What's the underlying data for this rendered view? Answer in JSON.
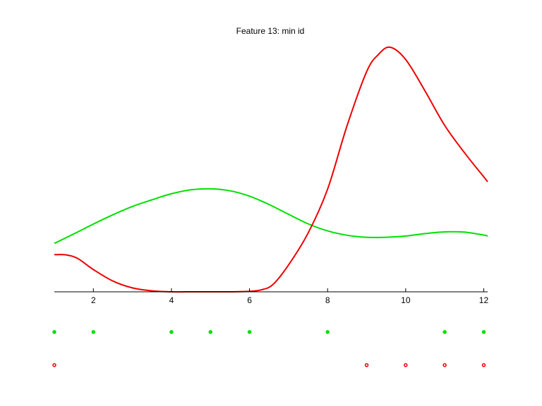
{
  "chart_data": {
    "type": "line",
    "title": "Feature 13: min id",
    "xlabel": "",
    "ylabel": "",
    "xlim": [
      1,
      12.1
    ],
    "ylim": [
      0,
      1.0
    ],
    "xticks": [
      2,
      4,
      6,
      8,
      10,
      12
    ],
    "grid": false,
    "series": [
      {
        "color": "#00e000",
        "x": [
          1,
          1.5,
          2,
          2.5,
          3,
          3.5,
          4,
          4.5,
          5,
          5.5,
          6,
          6.5,
          7,
          7.5,
          8,
          8.5,
          9,
          9.5,
          10,
          10.5,
          11,
          11.5,
          12,
          12.1
        ],
        "y": [
          0.198,
          0.237,
          0.277,
          0.315,
          0.349,
          0.376,
          0.401,
          0.417,
          0.421,
          0.413,
          0.391,
          0.357,
          0.317,
          0.278,
          0.249,
          0.231,
          0.223,
          0.223,
          0.228,
          0.238,
          0.245,
          0.244,
          0.232,
          0.228
        ]
      },
      {
        "color": "#ee0000",
        "x": [
          1,
          1.3,
          1.6,
          2,
          2.5,
          3,
          3.5,
          4,
          4.5,
          5,
          5.5,
          6,
          6.3,
          6.6,
          7,
          7.5,
          8,
          8.5,
          9,
          9.3,
          9.6,
          10,
          10.5,
          11,
          11.5,
          12,
          12.1
        ],
        "y": [
          0.152,
          0.151,
          0.136,
          0.091,
          0.044,
          0.016,
          0.004,
          0.0,
          0.0,
          0.0,
          0.0,
          0.002,
          0.008,
          0.03,
          0.11,
          0.24,
          0.42,
          0.68,
          0.9,
          0.97,
          1.0,
          0.95,
          0.82,
          0.68,
          0.57,
          0.47,
          0.45
        ]
      }
    ],
    "dot_rows": [
      {
        "color": "#00e000",
        "x": [
          1,
          2,
          4,
          5,
          6,
          8,
          11,
          12
        ]
      },
      {
        "color": "#ee0000",
        "x": [
          1,
          9,
          10,
          11,
          12
        ]
      }
    ]
  }
}
